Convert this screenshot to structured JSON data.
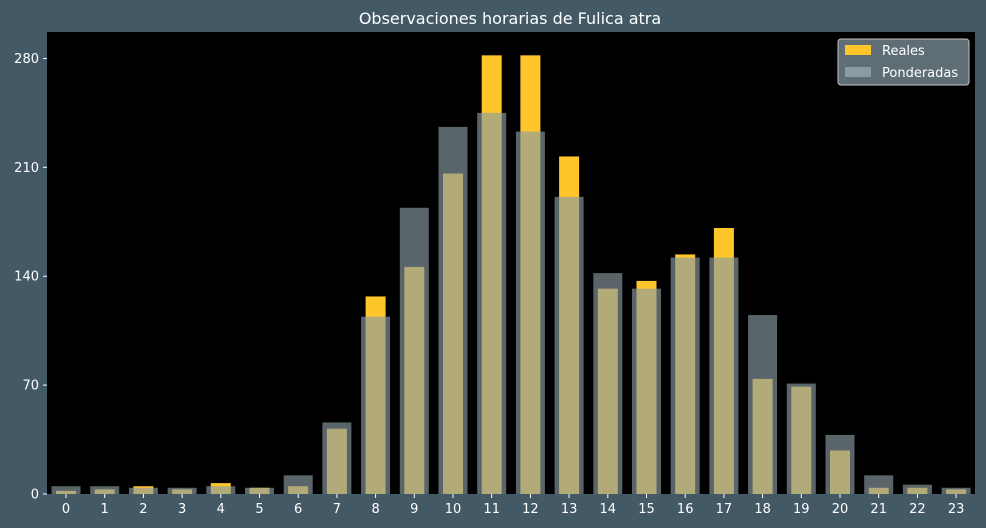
{
  "chart_data": {
    "type": "bar",
    "title": "Observaciones horarias de Fulica atra",
    "xlabel": "",
    "ylabel": "",
    "categories": [
      "0",
      "1",
      "2",
      "3",
      "4",
      "5",
      "6",
      "7",
      "8",
      "9",
      "10",
      "11",
      "12",
      "13",
      "14",
      "15",
      "16",
      "17",
      "18",
      "19",
      "20",
      "21",
      "22",
      "23"
    ],
    "series": [
      {
        "name": "Reales",
        "color": "#ffc62b",
        "values": [
          2,
          3,
          5,
          3,
          7,
          4,
          5,
          42,
          127,
          146,
          206,
          282,
          282,
          217,
          132,
          137,
          154,
          171,
          74,
          69,
          28,
          4,
          4,
          3
        ]
      },
      {
        "name": "Ponderadas",
        "color": "#8a9ba3",
        "values": [
          5,
          5,
          4,
          4,
          5,
          4,
          12,
          46,
          114,
          184,
          236,
          245,
          233,
          191,
          142,
          132,
          152,
          152,
          115,
          71,
          38,
          12,
          6,
          4
        ]
      }
    ],
    "ylim": [
      0,
      297
    ],
    "yticks": [
      0,
      70,
      140,
      210,
      280
    ],
    "grid": false,
    "legend_position": "top-right"
  }
}
